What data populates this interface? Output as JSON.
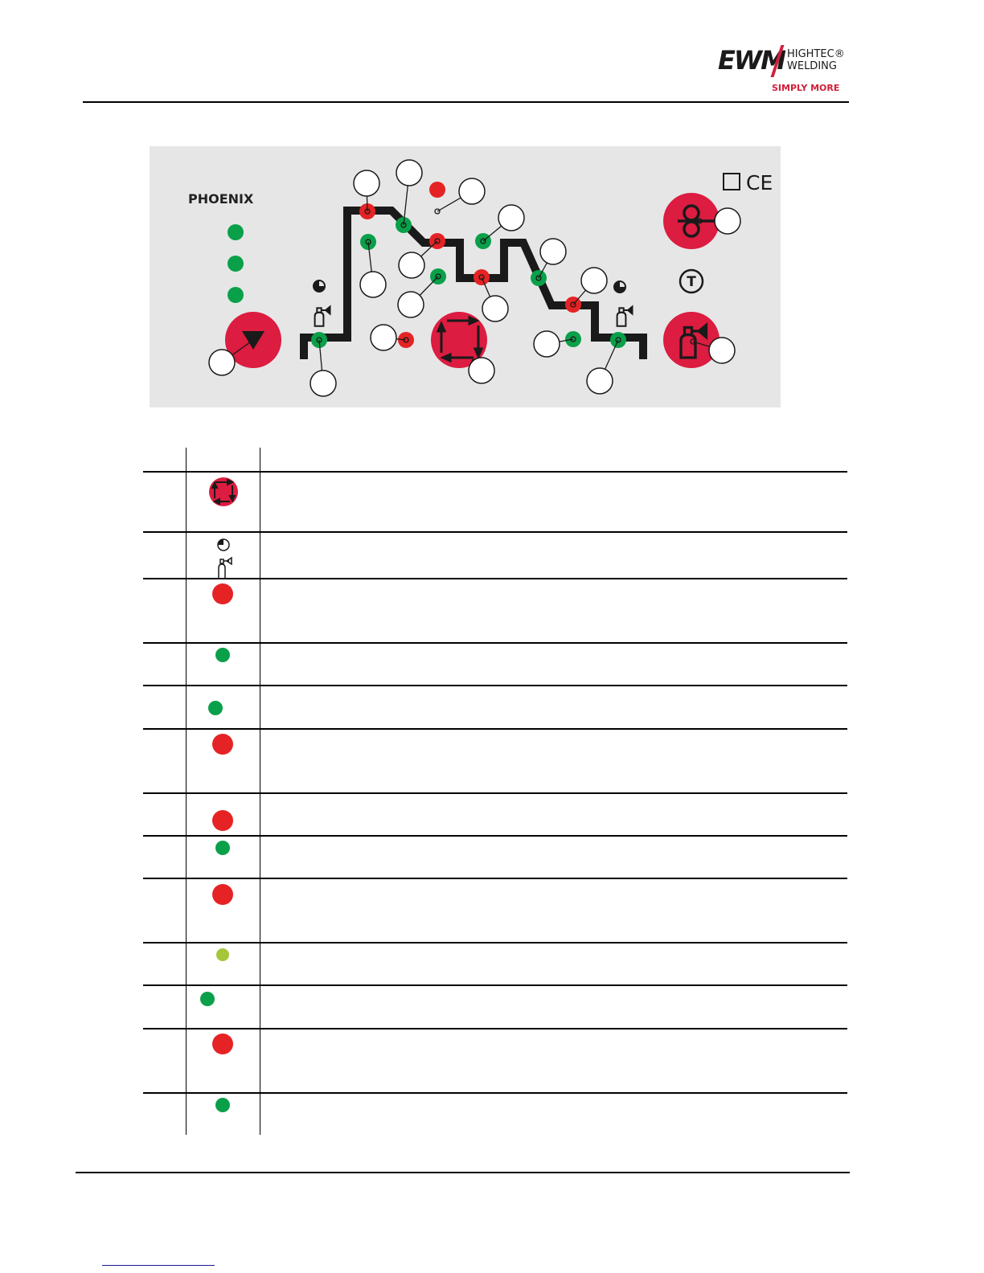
{
  "header": {
    "logo": {
      "brand": "EWM",
      "line1": "HIGHTEC®",
      "line2": "WELDING",
      "slogan": "SIMPLY MORE"
    }
  },
  "panel": {
    "model_label": "PHOENIX",
    "colors": {
      "panel_bg": "#e6e6e7",
      "button_red": "#dc1c40",
      "led_red": "#e52325",
      "led_green": "#0aa04a",
      "led_yellowgreen": "#a6c63a"
    },
    "buttons": [
      {
        "name": "down-selector-button",
        "icon": "triangle-down-icon"
      },
      {
        "name": "program-sequence-button",
        "icon": "cycle-arrows-icon"
      },
      {
        "name": "wire-inching-button",
        "icon": "wire-feed-icon"
      },
      {
        "name": "gas-test-button",
        "icon": "gas-cylinder-icon"
      }
    ],
    "symbols": [
      "ce-mark",
      "t-cycle-icon",
      "clock-icon",
      "gas-cylinder-icon"
    ]
  },
  "table": {
    "headers": [
      "",
      "",
      ""
    ],
    "rows": [
      {
        "icon": "program-button-icon",
        "text": ""
      },
      {
        "icon": "clock-gas-icon",
        "text": ""
      },
      {
        "icon": "led-red",
        "text": ""
      },
      {
        "icon": "led-green",
        "text": ""
      },
      {
        "icon": "led-green",
        "text": ""
      },
      {
        "icon": "led-red",
        "text": ""
      },
      {
        "icon": "led-red",
        "text": ""
      },
      {
        "icon": "led-green",
        "text": ""
      },
      {
        "icon": "led-red",
        "text": ""
      },
      {
        "icon": "led-yellowgreen",
        "text": ""
      },
      {
        "icon": "led-green",
        "text": ""
      },
      {
        "icon": "led-red",
        "text": ""
      },
      {
        "icon": "led-green",
        "text": ""
      }
    ]
  }
}
